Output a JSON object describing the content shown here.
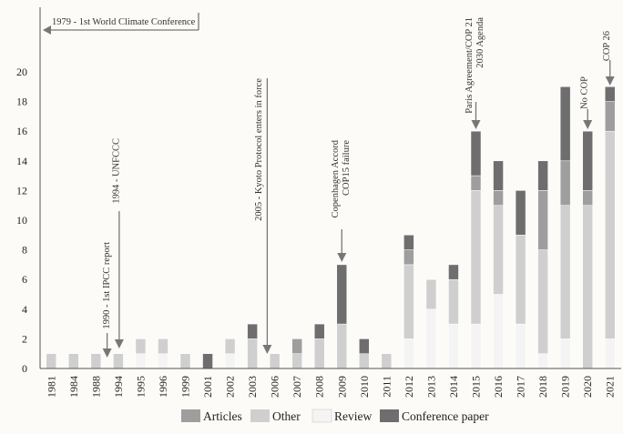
{
  "chart_data": {
    "type": "bar",
    "stacked": true,
    "categories": [
      "1981",
      "1984",
      "1988",
      "1994",
      "1995",
      "1996",
      "1999",
      "2001",
      "2002",
      "2003",
      "2006",
      "2007",
      "2008",
      "2009",
      "2010",
      "2011",
      "2012",
      "2013",
      "2014",
      "2015",
      "2016",
      "2017",
      "2018",
      "2019",
      "2020",
      "2021"
    ],
    "series": [
      {
        "name": "Review",
        "color": "#f4f4f4",
        "values": [
          0,
          0,
          0,
          0,
          1,
          1,
          0,
          0,
          1,
          0,
          0,
          0,
          0,
          0,
          0,
          0,
          2,
          4,
          3,
          3,
          5,
          3,
          1,
          2,
          0,
          2
        ]
      },
      {
        "name": "Other",
        "color": "#cfcfcf",
        "values": [
          1,
          1,
          1,
          1,
          1,
          1,
          1,
          0,
          1,
          2,
          1,
          1,
          2,
          3,
          1,
          1,
          5,
          2,
          3,
          9,
          6,
          6,
          7,
          9,
          11,
          14
        ]
      },
      {
        "name": "Articles",
        "color": "#9e9e9e",
        "values": [
          0,
          0,
          0,
          0,
          0,
          0,
          0,
          0,
          0,
          0,
          0,
          1,
          0,
          0,
          0,
          0,
          1,
          0,
          0,
          1,
          1,
          0,
          4,
          3,
          1,
          2
        ]
      },
      {
        "name": "Conference paper",
        "color": "#6e6e6e",
        "values": [
          0,
          0,
          0,
          0,
          0,
          0,
          0,
          1,
          0,
          1,
          0,
          0,
          1,
          4,
          1,
          0,
          1,
          0,
          1,
          3,
          2,
          3,
          2,
          5,
          4,
          1
        ]
      }
    ],
    "ylim": [
      0,
      21
    ],
    "yticks": [
      0,
      2,
      4,
      6,
      8,
      10,
      12,
      14,
      16,
      18,
      20
    ],
    "legend": {
      "position": "bottom",
      "order": [
        "Articles",
        "Other",
        "Review",
        "Conference paper"
      ]
    },
    "annotations": [
      {
        "text": "1979 - 1st World Climate Conference",
        "orientation": "horizontal",
        "points": "left"
      },
      {
        "text": "1990 - 1st IPCC report",
        "category_gap_after": "1988"
      },
      {
        "text": "1994 - UNFCCC",
        "category": "1994"
      },
      {
        "text": "2005 - Kyoto Protocol enters in force",
        "category_gap_after": "2003"
      },
      {
        "text": "Copenhagen Accord",
        "category": "2009"
      },
      {
        "text": "COP15 failure",
        "category": "2009"
      },
      {
        "text": "Paris Agreement/COP 21",
        "category": "2015"
      },
      {
        "text": "2030 Agenda",
        "category": "2015"
      },
      {
        "text": "No COP",
        "category": "2020"
      },
      {
        "text": "COP 26",
        "category": "2021"
      }
    ]
  }
}
